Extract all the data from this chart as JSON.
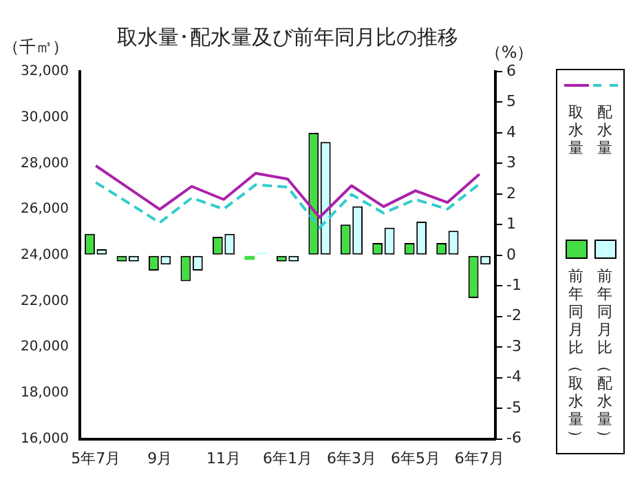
{
  "chart_data": {
    "type": "bar",
    "title": "取水量･配水量及び前年同月比の推移",
    "ylabel": "（千㎥）",
    "y2label": "（%）",
    "categories": [
      "5年7月",
      null,
      "9月",
      null,
      "11月",
      null,
      "6年1月",
      null,
      "6年3月",
      null,
      "6年5月",
      null,
      "6年7月"
    ],
    "series": [
      {
        "name": "取水量",
        "type": "line",
        "color": "#aa22aa",
        "line_style": "solid",
        "values": [
          27900,
          26950,
          26000,
          27000,
          26430,
          27570,
          27320,
          25650,
          27030,
          26120,
          26810,
          26300,
          27530
        ]
      },
      {
        "name": "配水量",
        "type": "line",
        "color": "#33cccc",
        "line_style": "dashed",
        "values": [
          27170,
          26300,
          25420,
          26500,
          26010,
          27070,
          26970,
          25200,
          26650,
          25840,
          26430,
          26010,
          27110
        ]
      },
      {
        "name": "前年同月比（取水量）",
        "axis": "y2",
        "color": "#44dd44",
        "values": [
          0.7,
          -0.2,
          -0.5,
          -0.85,
          0.6,
          -0.15,
          -0.2,
          4.0,
          1.0,
          0.4,
          0.4,
          0.4,
          -1.4
        ]
      },
      {
        "name": "前年同月比（配水量）",
        "axis": "y2",
        "color": "#ccffff",
        "values": [
          0.2,
          -0.2,
          -0.3,
          -0.5,
          0.7,
          0.1,
          -0.2,
          3.7,
          1.6,
          0.9,
          1.1,
          0.8,
          -0.3
        ]
      }
    ],
    "ylim": [
      16000,
      32000
    ],
    "yticks": [
      {
        "value": 16000,
        "label": "16,000"
      },
      {
        "value": 18000,
        "label": "18,000"
      },
      {
        "value": 20000,
        "label": "20,000"
      },
      {
        "value": 22000,
        "label": "22,000"
      },
      {
        "value": 24000,
        "label": "24,000"
      },
      {
        "value": 26000,
        "label": "26,000"
      },
      {
        "value": 28000,
        "label": "28,000"
      },
      {
        "value": 30000,
        "label": "30,000"
      },
      {
        "value": 32000,
        "label": "32,000"
      }
    ],
    "y2lim": [
      -6,
      6
    ],
    "y2ticks": [
      -6,
      -5,
      -4,
      -3,
      -2,
      -1,
      0,
      1,
      2,
      3,
      4,
      5,
      6
    ],
    "grid": false,
    "legend": "right",
    "marker": "none"
  }
}
